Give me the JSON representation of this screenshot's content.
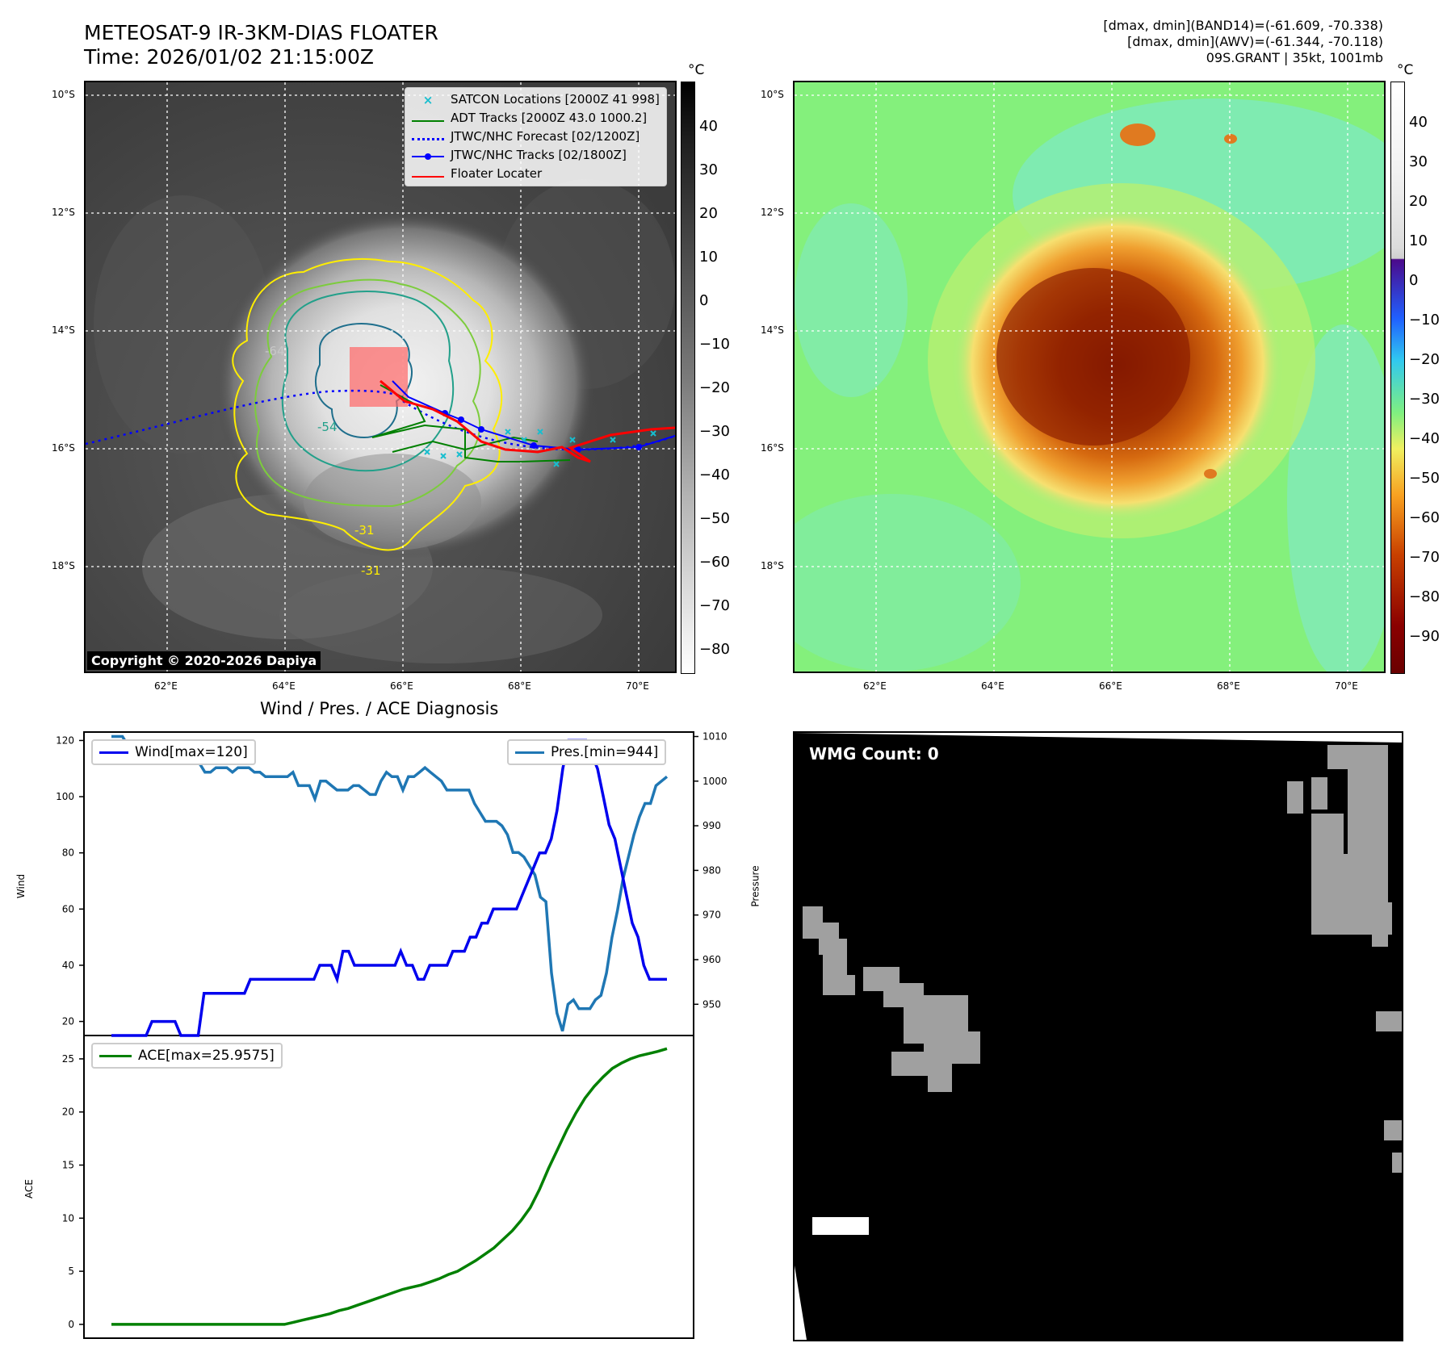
{
  "header": {
    "title_line1": "METEOSAT-9 IR-3KM-DIAS FLOATER",
    "title_line2": "Time: 2026/01/02 21:15:00Z",
    "info_line1": "[dmax, dmin](BAND14)=(-61.609, -70.338)",
    "info_line2": "[dmax, dmin](AWV)=(-61.344, -70.118)",
    "info_line3": "09S.GRANT | 35kt, 1001mb"
  },
  "map": {
    "lat_labels": [
      "10°S",
      "12°S",
      "14°S",
      "16°S",
      "18°S"
    ],
    "lon_labels": [
      "62°E",
      "64°E",
      "66°E",
      "68°E",
      "70°E"
    ],
    "copyright": "Copyright © 2020-2026 Dapiya",
    "contour_labels": [
      "-64",
      "-54",
      "-31",
      "-31"
    ],
    "legend": [
      {
        "label": "SATCON Locations [2000Z 41 998]",
        "color": "#17becf",
        "symbol": "x"
      },
      {
        "label": "ADT Tracks [2000Z 43.0 1000.2]",
        "color": "#008000",
        "symbol": "line"
      },
      {
        "label": "JTWC/NHC Forecast [02/1200Z]",
        "color": "#0000ff",
        "symbol": "dotted"
      },
      {
        "label": "JTWC/NHC Tracks [02/1800Z]",
        "color": "#0000ff",
        "symbol": "line-dot"
      },
      {
        "label": "Floater Locater",
        "color": "#ff0000",
        "symbol": "line"
      }
    ]
  },
  "colorbar_ir": {
    "unit": "°C",
    "ticks": [
      "40",
      "30",
      "20",
      "10",
      "0",
      "−10",
      "−20",
      "−30",
      "−40",
      "−50",
      "−60",
      "−70",
      "−80"
    ]
  },
  "colorbar_awv": {
    "unit": "°C",
    "ticks": [
      "40",
      "30",
      "20",
      "10",
      "0",
      "−10",
      "−20",
      "−30",
      "−40",
      "−50",
      "−60",
      "−70",
      "−80",
      "−90"
    ]
  },
  "diagnosis": {
    "title": "Wind / Pres. / ACE Diagnosis",
    "wind_label": "Wind",
    "pressure_label": "Pressure",
    "ace_label": "ACE",
    "wind_legend": "Wind[max=120]",
    "pres_legend": "Pres.[min=944]",
    "ace_legend": "ACE[max=25.9575]",
    "wind_color": "#0000ee",
    "pres_color": "#1f77b4",
    "ace_color": "#008000"
  },
  "wmg": {
    "label": "WMG Count: 0"
  },
  "chart_data": [
    {
      "type": "line",
      "title": "Wind / Pres. / ACE Diagnosis",
      "ylabel": "Wind",
      "ylim": [
        15,
        123
      ],
      "yticks": [
        20,
        40,
        60,
        80,
        100,
        120
      ],
      "series": [
        {
          "name": "Wind[max=120]",
          "values": [
            15,
            15,
            15,
            15,
            15,
            15,
            15,
            20,
            20,
            20,
            20,
            20,
            15,
            15,
            15,
            15,
            30,
            30,
            30,
            30,
            30,
            30,
            30,
            30,
            35,
            35,
            35,
            35,
            35,
            35,
            35,
            35,
            35,
            35,
            35,
            35,
            40,
            40,
            40,
            35,
            45,
            45,
            40,
            40,
            40,
            40,
            40,
            40,
            40,
            40,
            45,
            40,
            40,
            35,
            35,
            40,
            40,
            40,
            40,
            45,
            45,
            45,
            50,
            50,
            55,
            55,
            60,
            60,
            60,
            60,
            60,
            65,
            70,
            75,
            80,
            80,
            85,
            95,
            110,
            120,
            120,
            120,
            120,
            115,
            110,
            100,
            90,
            85,
            75,
            65,
            55,
            50,
            40,
            35,
            35,
            35,
            35
          ]
        }
      ]
    },
    {
      "type": "line",
      "ylabel": "Pressure",
      "ylim": [
        943,
        1011
      ],
      "yticks": [
        950,
        960,
        970,
        980,
        990,
        1000,
        1010
      ],
      "series": [
        {
          "name": "Pres.[min=944]",
          "values": [
            1010,
            1010,
            1010,
            1008,
            1008,
            1008,
            1008,
            1008,
            1008,
            1006,
            1006,
            1006,
            1007,
            1007,
            1007,
            1007,
            1004,
            1002,
            1002,
            1003,
            1003,
            1003,
            1002,
            1003,
            1003,
            1003,
            1002,
            1002,
            1001,
            1001,
            1001,
            1001,
            1001,
            1002,
            999,
            999,
            999,
            996,
            1000,
            1000,
            999,
            998,
            998,
            998,
            999,
            999,
            998,
            997,
            997,
            1000,
            1002,
            1001,
            1001,
            998,
            1001,
            1001,
            1002,
            1003,
            1002,
            1001,
            1000,
            998,
            998,
            998,
            998,
            998,
            995,
            993,
            991,
            991,
            991,
            990,
            988,
            984,
            984,
            983,
            981,
            979,
            974,
            973,
            957,
            948,
            944,
            950,
            951,
            949,
            949,
            949,
            951,
            952,
            957,
            965,
            971,
            978,
            983,
            988,
            992,
            995,
            995,
            999,
            1000,
            1001
          ]
        }
      ]
    },
    {
      "type": "line",
      "ylabel": "ACE",
      "ylim": [
        -1.3,
        27.2
      ],
      "yticks": [
        0,
        5,
        10,
        15,
        20,
        25
      ],
      "series": [
        {
          "name": "ACE[max=25.9575]",
          "values": [
            0,
            0,
            0,
            0,
            0,
            0,
            0,
            0,
            0,
            0,
            0,
            0,
            0,
            0,
            0,
            0,
            0,
            0,
            0,
            0,
            0.2,
            0.4,
            0.6,
            0.8,
            1.0,
            1.3,
            1.5,
            1.8,
            2.1,
            2.4,
            2.7,
            3.0,
            3.3,
            3.5,
            3.7,
            4.0,
            4.3,
            4.7,
            5.0,
            5.5,
            6.0,
            6.6,
            7.2,
            8.0,
            8.8,
            9.8,
            11.0,
            12.7,
            14.7,
            16.5,
            18.3,
            19.9,
            21.3,
            22.4,
            23.3,
            24.1,
            24.6,
            25.0,
            25.3,
            25.5,
            25.7,
            25.9575
          ]
        }
      ]
    }
  ]
}
